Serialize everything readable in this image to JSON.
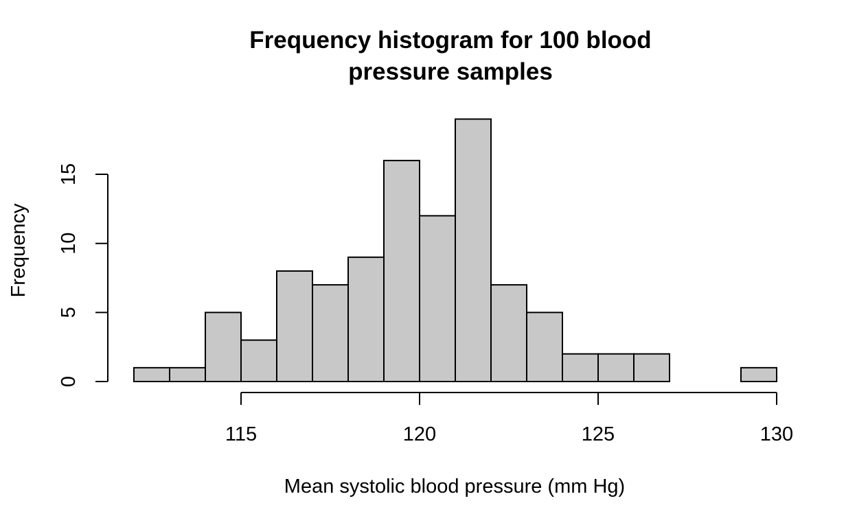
{
  "chart_data": {
    "type": "bar",
    "title_line1": "Frequency histogram for 100 blood",
    "title_line2": "pressure samples",
    "xlabel": "Mean systolic blood pressure (mm Hg)",
    "ylabel": "Frequency",
    "bin_edges": [
      112,
      113,
      114,
      115,
      116,
      117,
      118,
      119,
      120,
      121,
      122,
      123,
      124,
      125,
      126,
      127,
      128,
      129,
      130
    ],
    "values": [
      1,
      1,
      5,
      3,
      8,
      7,
      9,
      16,
      12,
      19,
      7,
      5,
      2,
      2,
      2,
      0,
      0,
      1
    ],
    "xlim": [
      115,
      130
    ],
    "ylim": [
      0,
      15
    ],
    "x_ticks": [
      "115",
      "120",
      "125",
      "130"
    ],
    "y_ticks": [
      "0",
      "5",
      "10",
      "15"
    ],
    "bar_color": "#c8c8c8",
    "grid": false
  }
}
